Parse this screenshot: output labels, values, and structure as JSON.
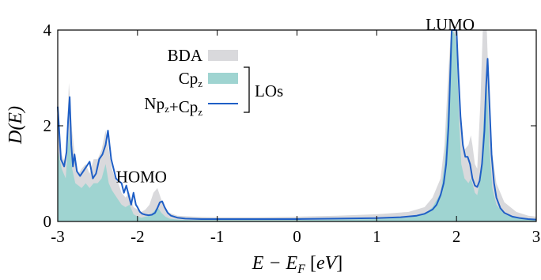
{
  "chart_data": {
    "type": "area",
    "title": "",
    "xlabel": "E − E_F [eV]",
    "ylabel": "D(E)",
    "xlim": [
      -3,
      3
    ],
    "ylim": [
      0,
      4
    ],
    "x_ticks": [
      {
        "value": -3,
        "label": "-3"
      },
      {
        "value": -2,
        "label": "-2"
      },
      {
        "value": -1,
        "label": "-1"
      },
      {
        "value": 0,
        "label": "0"
      },
      {
        "value": 1,
        "label": "1"
      },
      {
        "value": 2,
        "label": "2"
      },
      {
        "value": 3,
        "label": "3"
      }
    ],
    "y_ticks": [
      {
        "value": 0,
        "label": "0"
      },
      {
        "value": 2,
        "label": "2"
      },
      {
        "value": 4,
        "label": "4"
      }
    ],
    "grid": false,
    "legend_placement": "top-left",
    "legend_group_label": "LOs",
    "series": [
      {
        "name": "BDA",
        "style": "fill",
        "color": "#d9d9dc",
        "x": [
          -3.0,
          -2.95,
          -2.9,
          -2.86,
          -2.82,
          -2.78,
          -2.74,
          -2.7,
          -2.65,
          -2.6,
          -2.55,
          -2.5,
          -2.45,
          -2.4,
          -2.36,
          -2.32,
          -2.28,
          -2.24,
          -2.2,
          -2.15,
          -2.1,
          -2.05,
          -2.0,
          -1.95,
          -1.9,
          -1.85,
          -1.8,
          -1.75,
          -1.7,
          -1.65,
          -1.6,
          -1.5,
          -1.3,
          -1.0,
          -0.5,
          0.0,
          0.5,
          1.0,
          1.4,
          1.6,
          1.7,
          1.8,
          1.85,
          1.9,
          1.93,
          1.95,
          1.98,
          2.0,
          2.03,
          2.06,
          2.1,
          2.15,
          2.18,
          2.2,
          2.23,
          2.26,
          2.3,
          2.33,
          2.36,
          2.38,
          2.41,
          2.45,
          2.5,
          2.6,
          2.75,
          2.9,
          3.0
        ],
        "values": [
          2.3,
          1.4,
          1.2,
          2.9,
          1.9,
          1.3,
          1.0,
          1.1,
          1.2,
          1.0,
          1.3,
          1.3,
          1.5,
          1.9,
          1.5,
          1.1,
          0.9,
          0.8,
          0.6,
          0.5,
          0.6,
          0.3,
          0.25,
          0.2,
          0.25,
          0.35,
          0.6,
          0.7,
          0.45,
          0.25,
          0.18,
          0.12,
          0.1,
          0.09,
          0.09,
          0.1,
          0.12,
          0.15,
          0.2,
          0.3,
          0.5,
          0.9,
          1.6,
          3.2,
          4.0,
          4.0,
          4.0,
          4.0,
          2.8,
          1.9,
          1.5,
          1.6,
          1.8,
          1.6,
          1.2,
          1.1,
          2.5,
          4.0,
          4.0,
          4.0,
          2.5,
          1.4,
          0.8,
          0.4,
          0.2,
          0.12,
          0.1
        ]
      },
      {
        "name": "Cp_z",
        "style": "fill",
        "color": "#9fd4d1",
        "x": [
          -3.0,
          -2.95,
          -2.9,
          -2.86,
          -2.82,
          -2.78,
          -2.74,
          -2.7,
          -2.65,
          -2.6,
          -2.55,
          -2.5,
          -2.45,
          -2.4,
          -2.36,
          -2.32,
          -2.28,
          -2.24,
          -2.2,
          -2.15,
          -2.1,
          -2.05,
          -2.0,
          -1.95,
          -1.9,
          -1.85,
          -1.8,
          -1.75,
          -1.7,
          -1.65,
          -1.6,
          -1.5,
          -1.3,
          -1.0,
          -0.5,
          0.0,
          0.5,
          1.0,
          1.4,
          1.6,
          1.7,
          1.8,
          1.85,
          1.9,
          1.93,
          1.95,
          1.98,
          2.0,
          2.03,
          2.06,
          2.1,
          2.15,
          2.18,
          2.2,
          2.23,
          2.26,
          2.3,
          2.33,
          2.36,
          2.38,
          2.41,
          2.45,
          2.5,
          2.6,
          2.75,
          2.9,
          3.0
        ],
        "values": [
          1.5,
          1.1,
          0.9,
          1.9,
          1.1,
          0.8,
          0.75,
          0.7,
          0.8,
          0.7,
          0.8,
          0.8,
          0.9,
          1.2,
          0.8,
          0.65,
          0.55,
          0.45,
          0.35,
          0.3,
          0.35,
          0.15,
          0.1,
          0.08,
          0.1,
          0.12,
          0.2,
          0.3,
          0.18,
          0.1,
          0.06,
          0.04,
          0.03,
          0.03,
          0.03,
          0.03,
          0.04,
          0.05,
          0.08,
          0.15,
          0.3,
          0.6,
          1.2,
          2.6,
          3.9,
          4.0,
          3.9,
          3.6,
          2.2,
          1.2,
          0.9,
          0.8,
          0.9,
          0.8,
          0.6,
          0.55,
          0.9,
          1.8,
          2.7,
          3.0,
          1.6,
          0.7,
          0.35,
          0.15,
          0.07,
          0.04,
          0.03
        ]
      },
      {
        "name": "Np_z+Cp_z",
        "style": "line",
        "color": "#1f5fc6",
        "x": [
          -3.0,
          -2.96,
          -2.92,
          -2.89,
          -2.87,
          -2.85,
          -2.83,
          -2.81,
          -2.79,
          -2.76,
          -2.72,
          -2.68,
          -2.64,
          -2.6,
          -2.56,
          -2.52,
          -2.48,
          -2.44,
          -2.4,
          -2.37,
          -2.35,
          -2.33,
          -2.3,
          -2.27,
          -2.24,
          -2.2,
          -2.17,
          -2.14,
          -2.11,
          -2.08,
          -2.05,
          -2.02,
          -2.0,
          -1.97,
          -1.94,
          -1.9,
          -1.86,
          -1.82,
          -1.78,
          -1.75,
          -1.72,
          -1.69,
          -1.66,
          -1.62,
          -1.58,
          -1.5,
          -1.4,
          -1.2,
          -1.0,
          -0.5,
          0.0,
          0.5,
          1.0,
          1.3,
          1.5,
          1.6,
          1.7,
          1.75,
          1.8,
          1.84,
          1.87,
          1.9,
          1.92,
          1.94,
          1.96,
          1.98,
          2.0,
          2.02,
          2.05,
          2.08,
          2.11,
          2.14,
          2.17,
          2.2,
          2.23,
          2.26,
          2.29,
          2.32,
          2.35,
          2.37,
          2.39,
          2.41,
          2.44,
          2.47,
          2.5,
          2.55,
          2.6,
          2.7,
          2.8,
          2.9,
          3.0
        ],
        "values": [
          2.4,
          1.3,
          1.15,
          1.45,
          2.1,
          2.6,
          1.6,
          1.15,
          1.4,
          1.05,
          0.95,
          1.05,
          1.15,
          1.25,
          0.9,
          1.0,
          1.3,
          1.4,
          1.6,
          1.9,
          1.6,
          1.3,
          1.1,
          0.9,
          0.85,
          0.8,
          0.6,
          0.75,
          0.55,
          0.35,
          0.6,
          0.35,
          0.3,
          0.2,
          0.16,
          0.14,
          0.13,
          0.14,
          0.18,
          0.28,
          0.4,
          0.42,
          0.3,
          0.18,
          0.12,
          0.08,
          0.06,
          0.05,
          0.05,
          0.05,
          0.05,
          0.06,
          0.07,
          0.09,
          0.12,
          0.16,
          0.25,
          0.35,
          0.55,
          0.8,
          1.2,
          2.0,
          3.0,
          4.0,
          4.0,
          4.0,
          4.0,
          3.2,
          2.2,
          1.6,
          1.35,
          1.35,
          1.2,
          0.9,
          0.75,
          0.72,
          0.85,
          1.2,
          1.9,
          2.8,
          3.4,
          2.6,
          1.4,
          0.8,
          0.5,
          0.28,
          0.18,
          0.1,
          0.07,
          0.05,
          0.04
        ]
      }
    ],
    "annotations": [
      {
        "text": "HOMO",
        "x": -1.95,
        "y": 0.82
      },
      {
        "text": "LUMO",
        "x": 1.92,
        "y": 4.15
      }
    ]
  }
}
